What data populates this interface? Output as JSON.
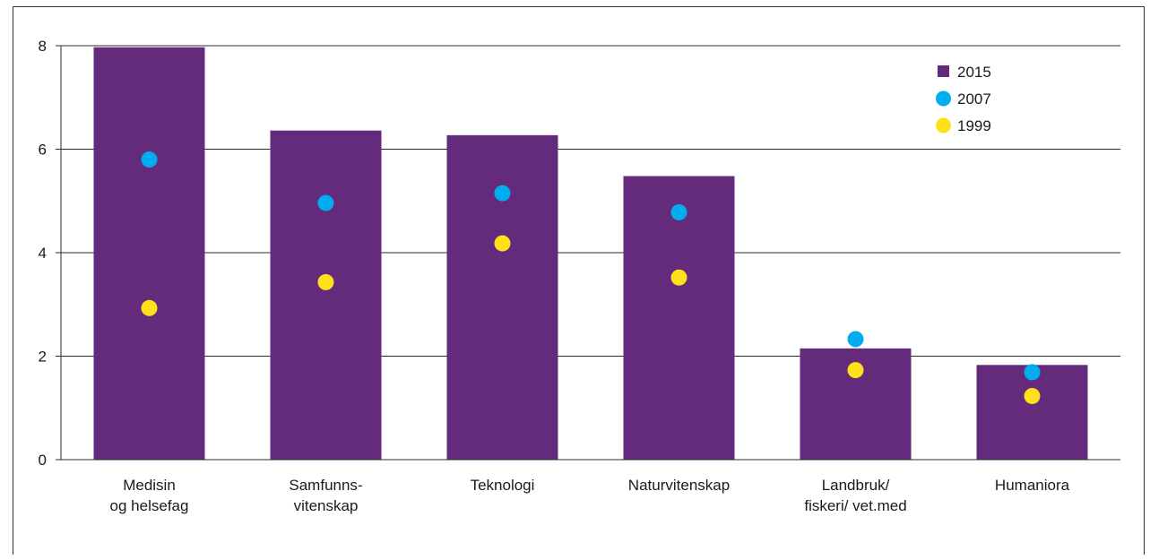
{
  "chart_data": {
    "type": "bar",
    "categories": [
      [
        "Medisin",
        "og helsefag"
      ],
      [
        "Samfunns-",
        "vitenskap"
      ],
      [
        "Teknologi"
      ],
      [
        "Naturvitenskap"
      ],
      [
        "Landbruk/",
        "fiskeri/ vet.med"
      ],
      [
        "Humaniora"
      ]
    ],
    "series": [
      {
        "name": "2015",
        "kind": "bar",
        "color": "#642a7c",
        "values": [
          7.97,
          6.36,
          6.27,
          5.48,
          2.15,
          1.83
        ]
      },
      {
        "name": "2007",
        "kind": "point",
        "color": "#00aeef",
        "values": [
          5.8,
          4.96,
          5.15,
          4.78,
          2.33,
          1.69
        ]
      },
      {
        "name": "1999",
        "kind": "point",
        "color": "#ffe01b",
        "values": [
          2.93,
          3.43,
          4.18,
          3.52,
          1.73,
          1.23
        ]
      }
    ],
    "ylim": [
      0,
      8
    ],
    "yticks": [
      0,
      2,
      4,
      6,
      8
    ],
    "grid": true,
    "legend_position": "top-right",
    "title": "",
    "xlabel": "",
    "ylabel": ""
  }
}
